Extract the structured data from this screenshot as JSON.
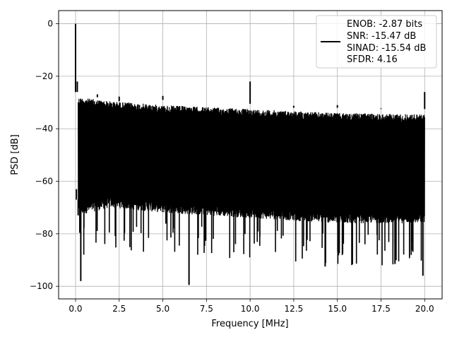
{
  "chart_data": {
    "type": "line",
    "title": "",
    "xlabel": "Frequency [MHz]",
    "ylabel": "PSD [dB]",
    "xlim": [
      -0.97,
      21.0
    ],
    "ylim": [
      -104.8,
      5.0
    ],
    "x_ticks": [
      0.0,
      2.5,
      5.0,
      7.5,
      10.0,
      12.5,
      15.0,
      17.5,
      20.0
    ],
    "x_tick_labels": [
      "0.0",
      "2.5",
      "5.0",
      "7.5",
      "10.0",
      "12.5",
      "15.0",
      "17.5",
      "20.0"
    ],
    "y_ticks": [
      0,
      -20,
      -40,
      -60,
      -80,
      -100
    ],
    "y_tick_labels": [
      "0",
      "−20",
      "−40",
      "−60",
      "−80",
      "−100"
    ],
    "grid": true,
    "legend_position": "top-right",
    "legend_lines": [
      "ENOB: -2.87 bits",
      "SNR: -15.47 dB",
      "SINAD: -15.54 dB",
      "SFDR: 4.16"
    ],
    "series": [
      {
        "color": "#000000",
        "noise_upper_envelope": [
          [
            0.15,
            -28
          ],
          [
            2.0,
            -29.5
          ],
          [
            5.0,
            -31
          ],
          [
            10.0,
            -32.5
          ],
          [
            15.0,
            -34
          ],
          [
            20.0,
            -34.5
          ]
        ],
        "noise_lower_envelope": [
          [
            0.15,
            -73
          ],
          [
            2.0,
            -70
          ],
          [
            5.0,
            -72
          ],
          [
            10.0,
            -74
          ],
          [
            15.0,
            -76
          ],
          [
            20.0,
            -76
          ]
        ],
        "spurs": [
          {
            "x": 0.0,
            "y": 0.0
          },
          {
            "x": 0.05,
            "y": -63.0
          },
          {
            "x": 0.1,
            "y": -22.0
          },
          {
            "x": 0.15,
            "y": -73.0
          },
          {
            "x": 0.3,
            "y": -98.0
          },
          {
            "x": 1.25,
            "y": -28.0
          },
          {
            "x": 2.5,
            "y": -29.5
          },
          {
            "x": 5.0,
            "y": -27.5
          },
          {
            "x": 6.5,
            "y": -99.5
          },
          {
            "x": 10.0,
            "y": -22.0
          },
          {
            "x": 12.5,
            "y": -32.0
          },
          {
            "x": 14.3,
            "y": -92.5
          },
          {
            "x": 15.0,
            "y": -31.0
          },
          {
            "x": 17.5,
            "y": -32.5
          },
          {
            "x": 18.3,
            "y": -91.5
          },
          {
            "x": 19.9,
            "y": -96.0
          },
          {
            "x": 20.0,
            "y": -26.0
          }
        ]
      }
    ]
  }
}
